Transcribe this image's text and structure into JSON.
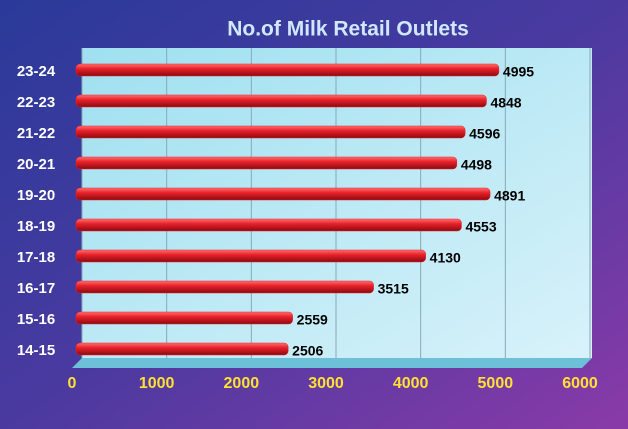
{
  "chart_data": {
    "type": "bar",
    "orientation": "horizontal",
    "title": "No.of Milk Retail Outlets",
    "categories": [
      "23-24",
      "22-23",
      "21-22",
      "20-21",
      "19-20",
      "18-19",
      "17-18",
      "16-17",
      "15-16",
      "14-15"
    ],
    "values": [
      4995,
      4848,
      4596,
      4498,
      4891,
      4553,
      4130,
      3515,
      2559,
      2506
    ],
    "color": "#e8202a",
    "xlim": [
      0,
      6000
    ],
    "xticks": [
      0,
      1000,
      2000,
      3000,
      4000,
      5000,
      6000
    ],
    "grid": true
  }
}
